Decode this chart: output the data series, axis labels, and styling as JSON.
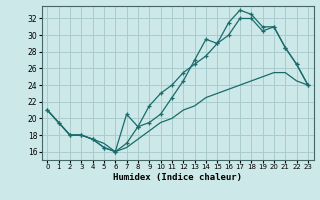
{
  "xlabel": "Humidex (Indice chaleur)",
  "bg_color": "#cce8e8",
  "grid_color": "#aacccc",
  "line_color": "#1a6b6b",
  "xlim": [
    -0.5,
    23.5
  ],
  "ylim": [
    15,
    33.5
  ],
  "xticks": [
    0,
    1,
    2,
    3,
    4,
    5,
    6,
    7,
    8,
    9,
    10,
    11,
    12,
    13,
    14,
    15,
    16,
    17,
    18,
    19,
    20,
    21,
    22,
    23
  ],
  "yticks": [
    16,
    18,
    20,
    22,
    24,
    26,
    28,
    30,
    32
  ],
  "line1_x": [
    0,
    1,
    2,
    3,
    4,
    5,
    6,
    7,
    8,
    9,
    10,
    11,
    12,
    13,
    14,
    15,
    16,
    17,
    18,
    19,
    20,
    21,
    22,
    23
  ],
  "line1_y": [
    21.0,
    19.5,
    18.0,
    18.0,
    17.5,
    16.5,
    16.0,
    17.0,
    19.0,
    19.5,
    20.5,
    22.5,
    24.5,
    27.0,
    29.5,
    29.0,
    31.5,
    33.0,
    32.5,
    31.0,
    31.0,
    28.5,
    26.5,
    24.0
  ],
  "line2_x": [
    0,
    1,
    2,
    3,
    4,
    5,
    6,
    7,
    8,
    9,
    10,
    11,
    12,
    13,
    14,
    15,
    16,
    17,
    18,
    19,
    20,
    21,
    22,
    23
  ],
  "line2_y": [
    21.0,
    19.5,
    18.0,
    18.0,
    17.5,
    16.5,
    16.0,
    20.5,
    19.0,
    21.5,
    23.0,
    24.0,
    25.5,
    26.5,
    27.5,
    29.0,
    30.0,
    32.0,
    32.0,
    30.5,
    31.0,
    28.5,
    26.5,
    24.0
  ],
  "line3_x": [
    0,
    1,
    2,
    3,
    4,
    5,
    6,
    7,
    8,
    9,
    10,
    11,
    12,
    13,
    14,
    15,
    16,
    17,
    18,
    19,
    20,
    21,
    22,
    23
  ],
  "line3_y": [
    21.0,
    19.5,
    18.0,
    18.0,
    17.5,
    17.0,
    16.0,
    16.5,
    17.5,
    18.5,
    19.5,
    20.0,
    21.0,
    21.5,
    22.5,
    23.0,
    23.5,
    24.0,
    24.5,
    25.0,
    25.5,
    25.5,
    24.5,
    24.0
  ]
}
